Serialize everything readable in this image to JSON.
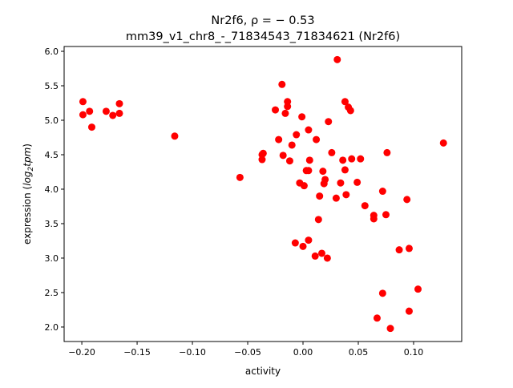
{
  "chart_data": {
    "type": "scatter",
    "title_line1": "Nr2f6, ρ = − 0.53",
    "title_line2": "mm39_v1_chr8_-_71834543_71834621 (Nr2f6)",
    "xlabel": "activity",
    "ylabel_prefix": "expression (",
    "ylabel_math": "log",
    "ylabel_sub": "2",
    "ylabel_math2": "tpm",
    "ylabel_suffix": ")",
    "xlim": [
      -0.216,
      0.1435
    ],
    "ylim": [
      1.79,
      6.07
    ],
    "xticks": [
      -0.2,
      -0.15,
      -0.1,
      -0.05,
      0.0,
      0.05,
      0.1
    ],
    "xtick_labels": [
      "−0.20",
      "−0.15",
      "−0.10",
      "−0.05",
      "0.00",
      "0.05",
      "0.10"
    ],
    "yticks": [
      2.0,
      2.5,
      3.0,
      3.5,
      4.0,
      4.5,
      5.0,
      5.5,
      6.0
    ],
    "ytick_labels": [
      "2.0",
      "2.5",
      "3.0",
      "3.5",
      "4.0",
      "4.5",
      "5.0",
      "5.5",
      "6.0"
    ],
    "grid": false,
    "marker_color": "#ff0000",
    "points": [
      [
        -0.199,
        5.27
      ],
      [
        -0.199,
        5.08
      ],
      [
        -0.193,
        5.13
      ],
      [
        -0.191,
        4.9
      ],
      [
        -0.178,
        5.13
      ],
      [
        -0.172,
        5.07
      ],
      [
        -0.166,
        5.24
      ],
      [
        -0.166,
        5.1
      ],
      [
        -0.116,
        4.77
      ],
      [
        -0.057,
        4.17
      ],
      [
        -0.037,
        4.5
      ],
      [
        -0.036,
        4.52
      ],
      [
        -0.037,
        4.43
      ],
      [
        -0.019,
        5.52
      ],
      [
        -0.025,
        5.15
      ],
      [
        -0.014,
        5.27
      ],
      [
        -0.014,
        5.2
      ],
      [
        -0.016,
        5.1
      ],
      [
        -0.022,
        4.72
      ],
      [
        -0.018,
        4.49
      ],
      [
        -0.012,
        4.41
      ],
      [
        -0.01,
        4.64
      ],
      [
        -0.006,
        4.79
      ],
      [
        -0.001,
        5.05
      ],
      [
        0.005,
        4.86
      ],
      [
        0.012,
        4.72
      ],
      [
        0.023,
        4.98
      ],
      [
        0.031,
        5.88
      ],
      [
        0.038,
        5.27
      ],
      [
        0.041,
        5.19
      ],
      [
        0.043,
        5.14
      ],
      [
        0.026,
        4.53
      ],
      [
        0.036,
        4.42
      ],
      [
        0.044,
        4.44
      ],
      [
        0.052,
        4.44
      ],
      [
        0.038,
        4.28
      ],
      [
        0.006,
        4.42
      ],
      [
        0.003,
        4.27
      ],
      [
        0.005,
        4.27
      ],
      [
        0.018,
        4.26
      ],
      [
        -0.003,
        4.09
      ],
      [
        0.001,
        4.05
      ],
      [
        0.02,
        4.14
      ],
      [
        0.019,
        4.08
      ],
      [
        0.034,
        4.09
      ],
      [
        0.049,
        4.1
      ],
      [
        0.015,
        3.9
      ],
      [
        0.03,
        3.87
      ],
      [
        0.039,
        3.92
      ],
      [
        0.056,
        3.76
      ],
      [
        0.072,
        3.97
      ],
      [
        0.076,
        4.53
      ],
      [
        0.064,
        3.62
      ],
      [
        0.064,
        3.57
      ],
      [
        0.075,
        3.63
      ],
      [
        0.094,
        3.85
      ],
      [
        0.127,
        4.67
      ],
      [
        0.014,
        3.56
      ],
      [
        -0.007,
        3.22
      ],
      [
        0.0,
        3.17
      ],
      [
        0.005,
        3.26
      ],
      [
        0.011,
        3.03
      ],
      [
        0.017,
        3.07
      ],
      [
        0.022,
        3.0
      ],
      [
        0.087,
        3.12
      ],
      [
        0.096,
        3.14
      ],
      [
        0.072,
        2.49
      ],
      [
        0.104,
        2.55
      ],
      [
        0.096,
        2.23
      ],
      [
        0.067,
        2.13
      ],
      [
        0.079,
        1.98
      ]
    ]
  }
}
